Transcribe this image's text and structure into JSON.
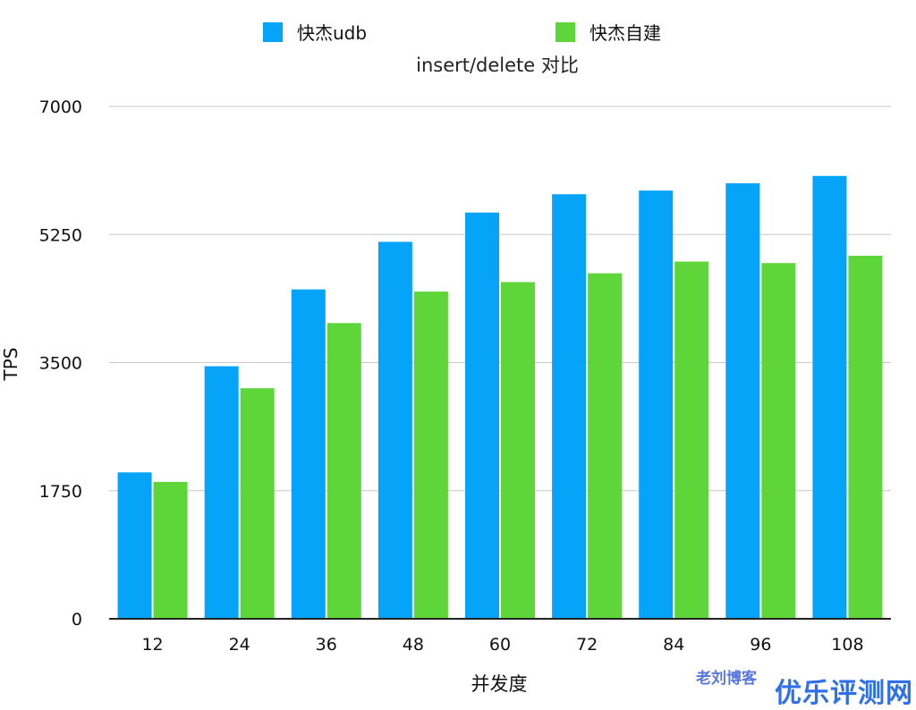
{
  "chart_data": {
    "type": "bar",
    "title": "insert/delete 对比",
    "xlabel": "并发度",
    "ylabel": "TPS",
    "categories": [
      "12",
      "24",
      "36",
      "48",
      "60",
      "72",
      "84",
      "96",
      "108"
    ],
    "series": [
      {
        "name": "快杰udb",
        "color": "#05a4f9",
        "values": [
          2000,
          3450,
          4500,
          5150,
          5550,
          5800,
          5850,
          5950,
          6050
        ]
      },
      {
        "name": "快杰自建",
        "color": "#5ed539",
        "values": [
          1870,
          3150,
          4040,
          4470,
          4600,
          4720,
          4880,
          4860,
          4960
        ]
      }
    ],
    "ylim": [
      0,
      7000
    ],
    "yticks": [
      0,
      1750,
      3500,
      5250,
      7000
    ],
    "grid": true,
    "legend": "top"
  },
  "watermark": {
    "blog": "老刘博客",
    "site": "优乐评测网"
  }
}
